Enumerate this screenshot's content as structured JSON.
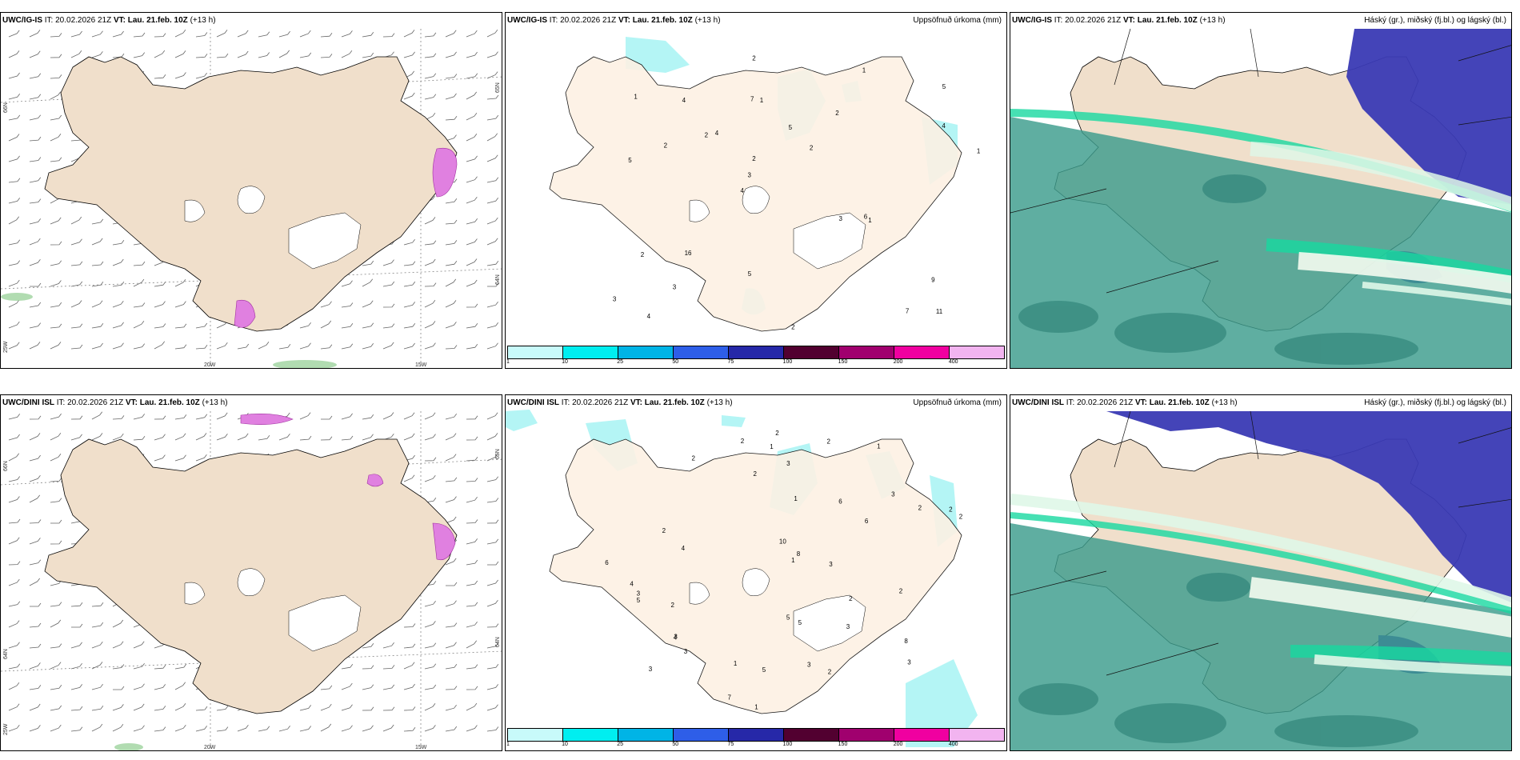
{
  "rows": [
    {
      "wind": {
        "model": "UWC/IG-IS",
        "it": "IT: 20.02.2026 21Z",
        "vt_label": "VT:",
        "vt": "Lau. 21.feb. 10Z",
        "lead": "(+13 h)",
        "lon_labels": [
          "20W",
          "15W"
        ],
        "lat_labels": [
          "66N",
          "64N"
        ],
        "side_labels": [
          "25W",
          "65N",
          "64N"
        ]
      },
      "precip": {
        "model": "UWC/IG-IS",
        "it": "IT: 20.02.2026 21Z",
        "vt_label": "VT:",
        "vt": "Lau. 21.feb. 10Z",
        "lead": "(+13 h)",
        "title": "Uppsöfnuð úrkoma (mm)",
        "amounts": [
          "11",
          "5",
          "5",
          "4",
          "2",
          "4",
          "7",
          "5",
          "2",
          "4",
          "3",
          "3",
          "1",
          "2",
          "1",
          "1",
          "2",
          "1",
          "3",
          "4",
          "3",
          "5",
          "2",
          "4",
          "1",
          "16",
          "7",
          "9",
          "6",
          "2",
          "2",
          "2"
        ]
      },
      "cloud": {
        "model": "UWC/IG-IS",
        "it": "IT: 20.02.2026 21Z",
        "vt_label": "VT:",
        "vt": "Lau. 21.feb. 10Z",
        "lead": "(+13 h)",
        "title": "Háský (gr.), miðský (fj.bl.) og lágský (bl.)"
      }
    },
    {
      "wind": {
        "model": "UWC/DINI ISL",
        "it": "IT: 20.02.2026 21Z",
        "vt_label": "VT:",
        "vt": "Lau. 21.feb. 10Z",
        "lead": "(+13 h)",
        "lon_labels": [
          "20W",
          "15W"
        ],
        "lat_labels": [
          "66N",
          "64N"
        ],
        "side_labels": [
          "25W",
          "65N",
          "64N"
        ]
      },
      "precip": {
        "model": "UWC/DINI ISL",
        "it": "IT: 20.02.2026 21Z",
        "vt_label": "VT:",
        "vt": "Lau. 21.feb. 10Z",
        "lead": "(+13 h)",
        "title": "Uppsöfnuð úrkoma (mm)",
        "amounts": [
          "3",
          "1",
          "2",
          "3",
          "5",
          "4",
          "2",
          "3",
          "2",
          "6",
          "4",
          "2",
          "3",
          "1",
          "1",
          "2",
          "3",
          "6",
          "4",
          "7",
          "2",
          "1",
          "2",
          "8",
          "10",
          "1",
          "3",
          "2",
          "1",
          "2",
          "2",
          "3",
          "3",
          "5",
          "8",
          "5",
          "2",
          "3",
          "6",
          "2",
          "2",
          "3",
          "5"
        ]
      },
      "cloud": {
        "model": "UWC/DINI ISL",
        "it": "IT: 20.02.2026 21Z",
        "vt_label": "VT:",
        "vt": "Lau. 21.feb. 10Z",
        "lead": "(+13 h)",
        "title": "Háský (gr.), miðský (fj.bl.) og lágský (bl.)"
      }
    }
  ],
  "legend": {
    "ticks": [
      "1",
      "10",
      "25",
      "50",
      "75",
      "100",
      "150",
      "200",
      "400"
    ],
    "colors": [
      "#c8fafa",
      "#00eef0",
      "#00b4e6",
      "#2e5ee8",
      "#2628a8",
      "#520030",
      "#a0006e",
      "#f000a0",
      "#f2b4f0"
    ]
  },
  "palette": {
    "land": "#f0dfcb",
    "land_precip": "#fdf1e4",
    "glacier": "#ffffff",
    "precip_light": "#b4f5f5",
    "cloud_low": "#3c9c8c",
    "cloud_mid": "#3a3ab4",
    "cloud_high": "#dff7e8",
    "cloud_edge": "#18d8a0",
    "snow_magenta": "#e080e0"
  }
}
